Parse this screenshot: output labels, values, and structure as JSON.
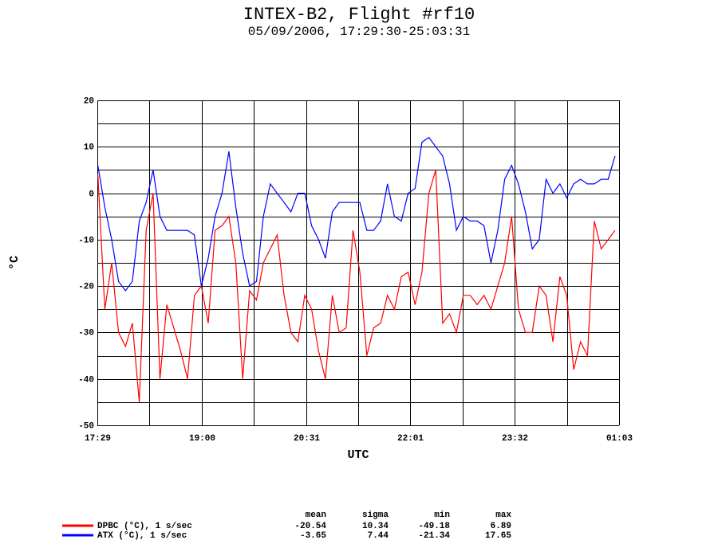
{
  "chart_data": {
    "type": "line",
    "title": "INTEX-B2, Flight #rf10",
    "subtitle": "05/09/2006, 17:29:30-25:03:31",
    "xlabel": "UTC",
    "ylabel": "°C",
    "x": [
      17.5,
      17.6,
      17.7,
      17.8,
      17.9,
      18.0,
      18.1,
      18.2,
      18.3,
      18.4,
      18.5,
      18.6,
      18.7,
      18.8,
      18.9,
      19.0,
      19.1,
      19.2,
      19.3,
      19.4,
      19.5,
      19.6,
      19.7,
      19.8,
      19.9,
      20.0,
      20.1,
      20.2,
      20.3,
      20.4,
      20.5,
      20.6,
      20.7,
      20.8,
      20.9,
      21.0,
      21.1,
      21.2,
      21.3,
      21.4,
      21.5,
      21.6,
      21.7,
      21.8,
      21.9,
      22.0,
      22.1,
      22.2,
      22.3,
      22.4,
      22.5,
      22.6,
      22.7,
      22.8,
      22.9,
      23.0,
      23.1,
      23.2,
      23.3,
      23.4,
      23.5,
      23.6,
      23.7,
      23.8,
      23.9,
      24.0,
      24.1,
      24.2,
      24.3,
      24.4,
      24.5,
      24.6,
      24.7,
      24.8,
      24.9,
      25.0
    ],
    "series": [
      {
        "name": "DPBC (°C), 1 s/sec",
        "color": "#ff0000",
        "values": [
          4,
          -25,
          -15,
          -30,
          -33,
          -28,
          -45,
          -8,
          0,
          -40,
          -24,
          -29,
          -34,
          -40,
          -22,
          -20,
          -28,
          -8,
          -7,
          -5,
          -15,
          -40,
          -21,
          -23,
          -15,
          -12,
          -9,
          -22,
          -30,
          -32,
          -22,
          -25,
          -34,
          -40,
          -22,
          -30,
          -29,
          -8,
          -17,
          -35,
          -29,
          -28,
          -22,
          -25,
          -18,
          -17,
          -24,
          -17,
          0,
          5,
          -28,
          -26,
          -30,
          -22,
          -22,
          -24,
          -22,
          -25,
          -20,
          -15,
          -5,
          -25,
          -30,
          -30,
          -20,
          -22,
          -32,
          -18,
          -22,
          -38,
          -32,
          -35,
          -6,
          -12,
          -10,
          -8
        ],
        "stats": [
          -20.54,
          10.34,
          -49.18,
          6.89
        ]
      },
      {
        "name": "ATX (°C), 1 s/sec",
        "color": "#0000ff",
        "values": [
          6,
          -3,
          -10,
          -19,
          -21,
          -19,
          -6,
          -2,
          5,
          -5,
          -8,
          -8,
          -8,
          -8,
          -9,
          -20,
          -14,
          -5,
          0,
          9,
          -3,
          -13,
          -20,
          -19,
          -5,
          2,
          0,
          -2,
          -4,
          0,
          0,
          -7,
          -10,
          -14,
          -4,
          -2,
          -2,
          -2,
          -2,
          -8,
          -8,
          -6,
          2,
          -5,
          -6,
          0,
          1,
          11,
          12,
          10,
          8,
          2,
          -8,
          -5,
          -6,
          -6,
          -7,
          -15,
          -8,
          3,
          6,
          2,
          -4,
          -12,
          -10,
          3,
          0,
          2,
          -1,
          2,
          3,
          2,
          2,
          3,
          3,
          8
        ],
        "stats": [
          -3.65,
          7.44,
          -21.34,
          17.65
        ]
      }
    ],
    "stats_columns": [
      "mean",
      "sigma",
      "min",
      "max"
    ],
    "xlim": [
      17.4917,
      25.0586
    ],
    "xticks": [
      {
        "value": 17.4917,
        "label": "17:29"
      },
      {
        "value": 19.0051,
        "label": "19:00"
      },
      {
        "value": 20.5185,
        "label": "20:31"
      },
      {
        "value": 22.0319,
        "label": "22:01"
      },
      {
        "value": 23.5452,
        "label": "23:32"
      },
      {
        "value": 25.0586,
        "label": "01:03"
      }
    ],
    "xgrid": [
      18.2484,
      19.7618,
      21.2752,
      22.7886,
      24.3019
    ],
    "ylim": [
      -50,
      20
    ],
    "yticks": [
      20,
      10,
      0,
      -10,
      -20,
      -30,
      -40,
      -50
    ],
    "ygrid": [
      15,
      5,
      -5,
      -15,
      -25,
      -35,
      -45
    ],
    "grid": true
  }
}
